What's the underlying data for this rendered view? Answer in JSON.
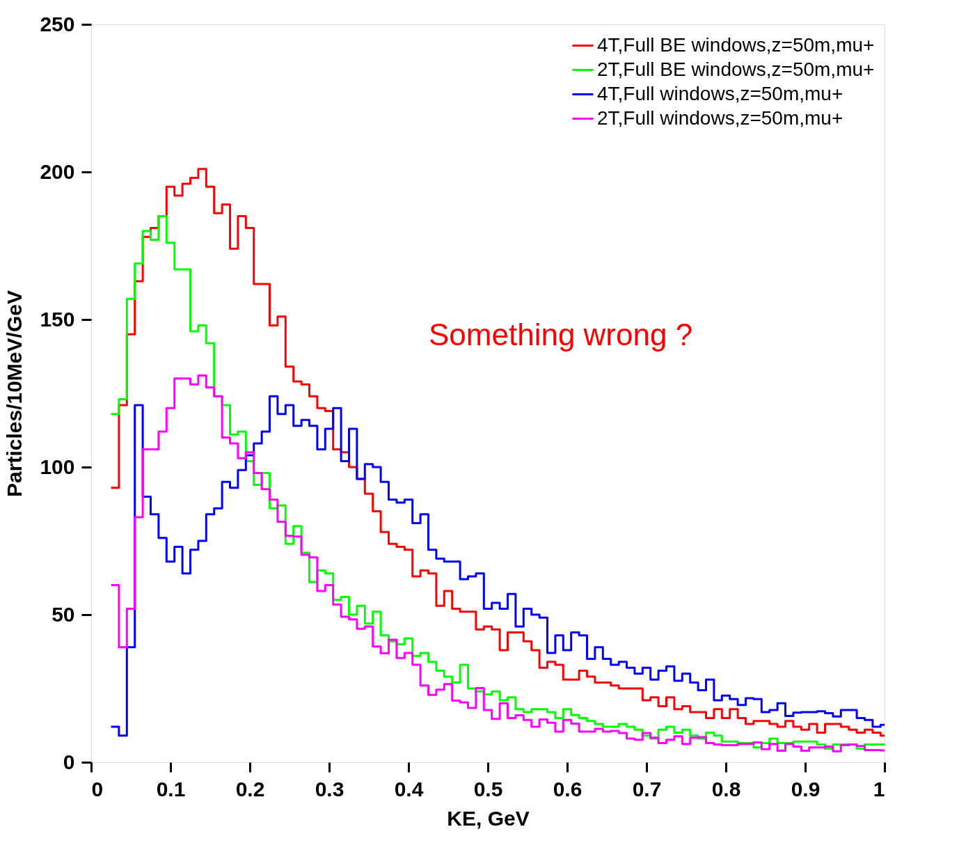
{
  "chart_data": {
    "type": "histogram",
    "xlabel": "KE, GeV",
    "ylabel": "Particles/10MeV/GeV",
    "annotations": [
      "Something wrong ?"
    ],
    "bins": [
      0.025,
      0.035,
      0.045,
      0.055,
      0.065,
      0.075,
      0.085,
      0.095,
      0.105,
      0.115,
      0.125,
      0.135,
      0.145,
      0.155,
      0.165,
      0.175,
      0.185,
      0.195,
      0.205,
      0.215,
      0.225,
      0.235,
      0.245,
      0.255,
      0.265,
      0.275,
      0.285,
      0.295,
      0.305,
      0.315,
      0.325,
      0.335,
      0.345,
      0.355,
      0.365,
      0.375,
      0.385,
      0.395,
      0.405,
      0.415,
      0.425,
      0.435,
      0.445,
      0.455,
      0.465,
      0.475,
      0.485,
      0.495,
      0.505,
      0.515,
      0.525,
      0.535,
      0.545,
      0.555,
      0.565,
      0.575,
      0.585,
      0.595,
      0.605,
      0.615,
      0.625,
      0.635,
      0.645,
      0.655,
      0.665,
      0.675,
      0.685,
      0.695,
      0.705,
      0.715,
      0.725,
      0.735,
      0.745,
      0.755,
      0.765,
      0.775,
      0.785,
      0.795,
      0.805,
      0.815,
      0.825,
      0.835,
      0.845,
      0.855,
      0.865,
      0.875,
      0.885,
      0.895,
      0.905,
      0.915,
      0.925,
      0.935,
      0.945,
      0.955,
      0.965,
      0.975,
      0.985,
      0.995,
      1.0
    ],
    "series": [
      {
        "name": "4T,Full BE windows,z=50m,mu+",
        "color": "#ff0000",
        "values": [
          93,
          121,
          145,
          163,
          178,
          181,
          185,
          195,
          192,
          196,
          198,
          201,
          195,
          186,
          189,
          174,
          185,
          181,
          162,
          162,
          148,
          151,
          134,
          129,
          128,
          124,
          120,
          119,
          106,
          105,
          100,
          96,
          91,
          85,
          78,
          74,
          73,
          72,
          63,
          65,
          64,
          53,
          58,
          52,
          51,
          51,
          45,
          46,
          45,
          38,
          44,
          44,
          41,
          38,
          32,
          34,
          33,
          28,
          28,
          31,
          29,
          27,
          27,
          26,
          25,
          25,
          25,
          21,
          22,
          19,
          22,
          18,
          19,
          17,
          17,
          15,
          18,
          15,
          18,
          15,
          13,
          14,
          14,
          13,
          12,
          14,
          12,
          11,
          13,
          10,
          13,
          13,
          12,
          11,
          10,
          11,
          10,
          9
        ]
      },
      {
        "name": "2T,Full BE windows,z=50m,mu+",
        "color": "#00ff00",
        "values": [
          118,
          123,
          157,
          169,
          180,
          177,
          185,
          176,
          167,
          167,
          146,
          148,
          142,
          124,
          121,
          111,
          112,
          102,
          94,
          98,
          86,
          87,
          74,
          80,
          71,
          61,
          65,
          64,
          55,
          56,
          50,
          53,
          47,
          51,
          43,
          41,
          40,
          42,
          36,
          37,
          34,
          31,
          29,
          27,
          33,
          25,
          24,
          23,
          24,
          21,
          22,
          18,
          17,
          18,
          18,
          17,
          15,
          18,
          16,
          15,
          14,
          13,
          12,
          12,
          13,
          12,
          11,
          9,
          8,
          11,
          12,
          10,
          11,
          9,
          8,
          10,
          9,
          7,
          7,
          6.5,
          6.5,
          5,
          6.5,
          8,
          6.5,
          6.5,
          7,
          7,
          7,
          6,
          4.6,
          6,
          6,
          6,
          4.6,
          6,
          6,
          6
        ]
      },
      {
        "name": "4T,Full windows,z=50m,mu+",
        "color": "#0000ff",
        "values": [
          12,
          9,
          39,
          121,
          90,
          84,
          76,
          68,
          73,
          64,
          72,
          75,
          84,
          86,
          95,
          93,
          99,
          104,
          108,
          112,
          124,
          118,
          121,
          114,
          116,
          114,
          106,
          113,
          120,
          102,
          113,
          96,
          101,
          100,
          95,
          89,
          88,
          89,
          81,
          84,
          72,
          69,
          68,
          68,
          62,
          63,
          64,
          52,
          54,
          52,
          57,
          46,
          52,
          50,
          49,
          37,
          43,
          38,
          44,
          43,
          35,
          39,
          35,
          33,
          34,
          32,
          30,
          32,
          28,
          31,
          32.5,
          27.6,
          30,
          27,
          24.4,
          28,
          21,
          22.6,
          21.4,
          19.4,
          21.7,
          21.4,
          17,
          17.7,
          20,
          15.7,
          16.8,
          17,
          17,
          17.3,
          16.6,
          15.5,
          17.7,
          17.7,
          15,
          14.3,
          12,
          12.7
        ]
      },
      {
        "name": "2T,Full windows,z=50m,mu+",
        "color": "#ff00ff",
        "values": [
          60,
          39,
          52,
          83,
          106,
          106,
          112,
          120,
          130,
          130,
          128,
          131,
          127,
          124,
          110,
          108,
          103,
          105,
          98,
          92.5,
          89,
          81.5,
          76.7,
          76.5,
          70.3,
          69.4,
          58,
          60,
          53.4,
          49.3,
          48.4,
          45.2,
          46,
          39.2,
          36.9,
          41.5,
          35.3,
          37,
          33,
          26,
          22.8,
          24.6,
          26.5,
          20.9,
          20.3,
          18.4,
          25.1,
          17.7,
          14.7,
          20,
          15,
          15.9,
          14.3,
          12,
          14.5,
          13.4,
          10.4,
          14.3,
          13.1,
          10.4,
          10.4,
          11.3,
          10.4,
          10.6,
          9.9,
          8,
          7.6,
          9.9,
          8.3,
          6.5,
          7.6,
          8.8,
          6.2,
          8.3,
          8.5,
          6.5,
          6,
          5.8,
          5.8,
          6.2,
          6.2,
          6.7,
          4.4,
          6.2,
          3.9,
          6.2,
          5.3,
          3.9,
          5,
          5,
          5.3,
          3.7,
          5.8,
          6,
          5.5,
          4.1,
          4.1,
          4
        ]
      }
    ],
    "xlim": [
      0,
      1
    ],
    "xticks": [
      0,
      0.1,
      0.2,
      0.3,
      0.4,
      0.5,
      0.6,
      0.7,
      0.8,
      0.9,
      1
    ],
    "ylim": [
      0,
      250
    ],
    "yticks": [
      0,
      50,
      100,
      150,
      200,
      250
    ],
    "grid": false,
    "legend": "top right",
    "line_style": "solid",
    "marker": "none"
  }
}
